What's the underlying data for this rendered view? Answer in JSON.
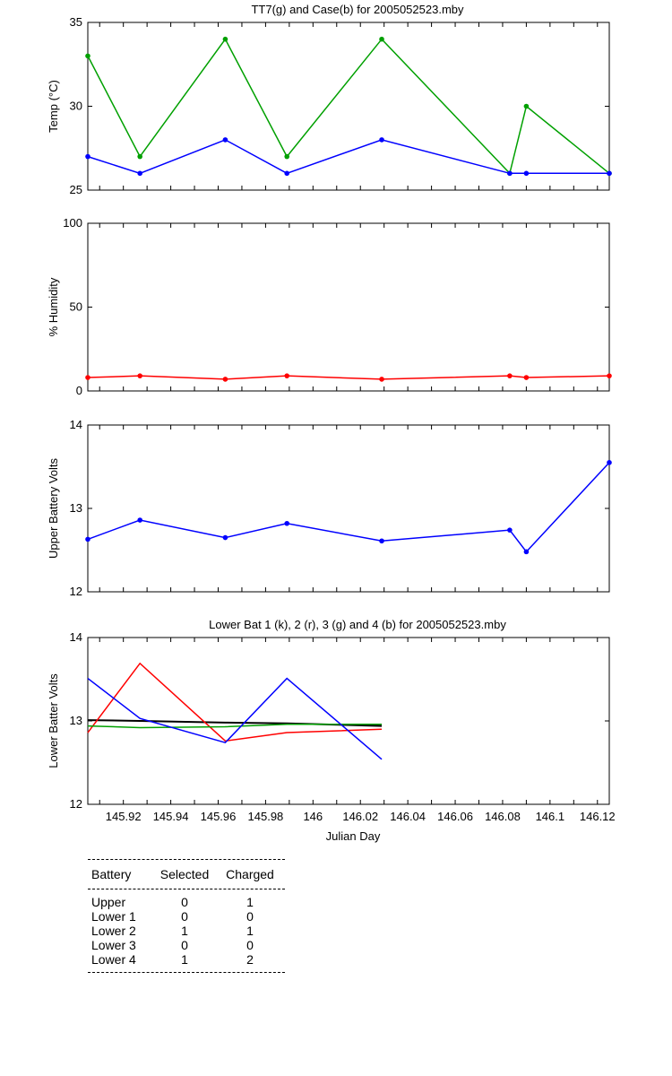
{
  "chart_data": [
    {
      "type": "line",
      "title": "TT7(g) and Case(b) for 2005052523.mby",
      "xlabel": "",
      "ylabel": "Temp  (°C)",
      "xlim": [
        145.905,
        146.125
      ],
      "ylim": [
        25,
        35
      ],
      "yticks": [
        25,
        30,
        35
      ],
      "series": [
        {
          "color": "#00a000",
          "x": [
            145.905,
            145.927,
            145.963,
            145.989,
            146.029,
            146.083,
            146.09,
            146.125
          ],
          "y": [
            33,
            27,
            34,
            27,
            34,
            26,
            30,
            26
          ]
        },
        {
          "color": "#0000ff",
          "x": [
            145.905,
            145.927,
            145.963,
            145.989,
            146.029,
            146.083,
            146.09,
            146.125
          ],
          "y": [
            27,
            26,
            28,
            26,
            28,
            26,
            26,
            26
          ]
        }
      ]
    },
    {
      "type": "line",
      "title": "",
      "xlabel": "",
      "ylabel": "% Humidity",
      "xlim": [
        145.905,
        146.125
      ],
      "ylim": [
        0,
        100
      ],
      "yticks": [
        0,
        50,
        100
      ],
      "series": [
        {
          "color": "#ff0000",
          "x": [
            145.905,
            145.927,
            145.963,
            145.989,
            146.029,
            146.083,
            146.09,
            146.125
          ],
          "y": [
            8,
            9,
            7,
            9,
            7,
            9,
            8,
            9
          ]
        }
      ]
    },
    {
      "type": "line",
      "title": "",
      "xlabel": "",
      "ylabel": "Upper Battery Volts",
      "xlim": [
        145.905,
        146.125
      ],
      "ylim": [
        12,
        14
      ],
      "yticks": [
        12,
        13,
        14
      ],
      "series": [
        {
          "color": "#0000ff",
          "x": [
            145.905,
            145.927,
            145.963,
            145.989,
            146.029,
            146.083,
            146.09,
            146.125
          ],
          "y": [
            12.63,
            12.86,
            12.65,
            12.82,
            12.61,
            12.74,
            12.48,
            13.55
          ]
        }
      ]
    },
    {
      "type": "line",
      "title": "Lower Bat 1 (k), 2 (r), 3 (g) and 4 (b) for 2005052523.mby",
      "xlabel": "Julian Day",
      "ylabel": "Lower Batter Volts",
      "xlim": [
        145.905,
        146.125
      ],
      "ylim": [
        12,
        14
      ],
      "yticks": [
        12,
        13,
        14
      ],
      "xticks": [
        145.92,
        145.94,
        145.96,
        145.98,
        146.0,
        146.02,
        146.04,
        146.06,
        146.08,
        146.1,
        146.12
      ],
      "xticklabels": [
        "145.92",
        "145.94",
        "145.96",
        "145.98",
        "146",
        "146.02",
        "146.04",
        "146.06",
        "146.08",
        "146.1",
        "146.12"
      ],
      "series": [
        {
          "color": "#000000",
          "x": [
            145.905,
            145.927,
            145.963,
            145.989,
            146.029
          ],
          "y": [
            13.01,
            13.0,
            12.98,
            12.97,
            12.94
          ]
        },
        {
          "color": "#ff0000",
          "x": [
            145.905,
            145.927,
            145.963,
            145.989,
            146.029
          ],
          "y": [
            12.86,
            13.69,
            12.76,
            12.86,
            12.9
          ]
        },
        {
          "color": "#00a000",
          "x": [
            145.905,
            145.927,
            145.963,
            145.989,
            146.029
          ],
          "y": [
            12.94,
            12.92,
            12.93,
            12.96,
            12.96
          ]
        },
        {
          "color": "#0000ff",
          "x": [
            145.905,
            145.927,
            145.963,
            145.989,
            146.029
          ],
          "y": [
            13.51,
            13.03,
            12.74,
            13.51,
            12.54
          ]
        }
      ]
    }
  ],
  "legend_table": {
    "headers": [
      "Battery",
      "Selected",
      "Charged"
    ],
    "rows": [
      [
        "Upper",
        "0",
        "1"
      ],
      [
        "Lower 1",
        "0",
        "0"
      ],
      [
        "Lower 2",
        "1",
        "1"
      ],
      [
        "Lower 3",
        "0",
        "0"
      ],
      [
        "Lower 4",
        "1",
        "2"
      ]
    ]
  }
}
